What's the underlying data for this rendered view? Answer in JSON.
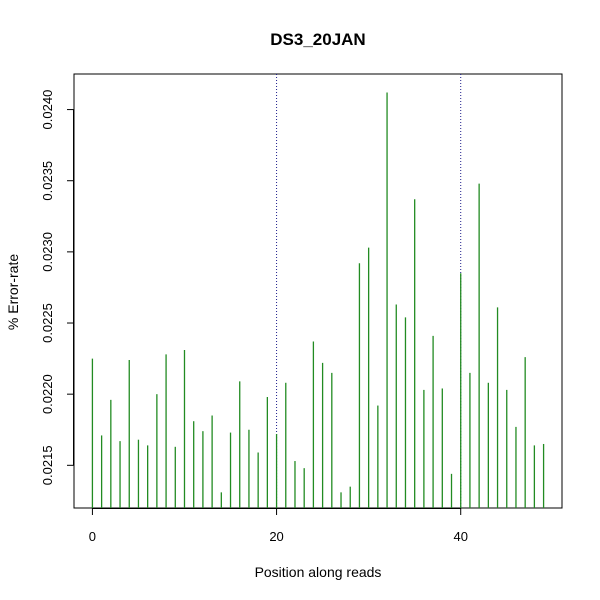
{
  "chart_data": {
    "type": "bar",
    "mark": "vertical-line",
    "title": "DS3_20JAN",
    "xlabel": "Position along reads",
    "ylabel": "% Error-rate",
    "x": [
      0,
      1,
      2,
      3,
      4,
      5,
      6,
      7,
      8,
      9,
      10,
      11,
      12,
      13,
      14,
      15,
      16,
      17,
      18,
      19,
      20,
      21,
      22,
      23,
      24,
      25,
      26,
      27,
      28,
      29,
      30,
      31,
      32,
      33,
      34,
      35,
      36,
      37,
      38,
      39,
      40,
      41,
      42,
      43,
      44,
      45,
      46,
      47,
      48,
      49
    ],
    "values": [
      0.02225,
      0.02171,
      0.02196,
      0.02167,
      0.02224,
      0.02168,
      0.02164,
      0.022,
      0.02228,
      0.02163,
      0.02231,
      0.02181,
      0.02174,
      0.02185,
      0.02131,
      0.02173,
      0.02209,
      0.02175,
      0.02159,
      0.02198,
      0.02172,
      0.02208,
      0.02153,
      0.02148,
      0.02237,
      0.02222,
      0.02215,
      0.02131,
      0.02135,
      0.02292,
      0.02303,
      0.02192,
      0.02412,
      0.02263,
      0.02254,
      0.02337,
      0.02203,
      0.02241,
      0.02204,
      0.02144,
      0.02285,
      0.02215,
      0.02348,
      0.02208,
      0.02261,
      0.02203,
      0.02177,
      0.02226,
      0.02164,
      0.02165
    ],
    "xlim": [
      -2,
      51
    ],
    "ylim": [
      0.0212,
      0.02425
    ],
    "xticks": [
      0,
      20,
      40
    ],
    "xtick_labels": [
      "0",
      "20",
      "40"
    ],
    "yticks": [
      0.0215,
      0.022,
      0.0225,
      0.023,
      0.0235,
      0.024
    ],
    "ytick_labels": [
      "0.0215",
      "0.0220",
      "0.0225",
      "0.0230",
      "0.0235",
      "0.0240"
    ],
    "vlines": [
      20,
      40
    ],
    "grid": false,
    "colors": {
      "bar": "#228b22",
      "vline": "#1e1e8c",
      "axis": "#000000"
    }
  }
}
